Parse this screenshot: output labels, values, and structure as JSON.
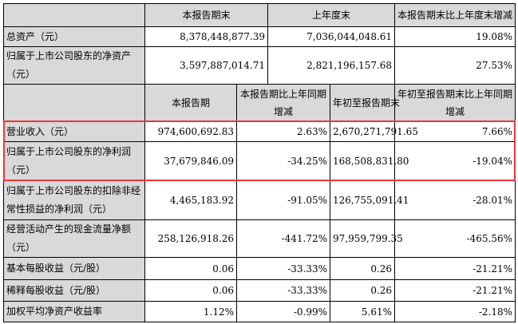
{
  "top_header": [
    "",
    "本报告期末",
    "上年度末",
    "本报告期末比上年度末增减"
  ],
  "top_rows": [
    {
      "label": "总资产（元）",
      "values": [
        "8,378,448,877.39",
        "7,036,044,048.61",
        "19.08%"
      ]
    },
    {
      "label": "归属于上市公司股东的净资产（元）",
      "values": [
        "3,597,887,014.71",
        "2,821,196,157.68",
        "27.53%"
      ]
    }
  ],
  "bottom_header": [
    "",
    "本报告期",
    "本报告期比上年同期增减",
    "年初至报告期末",
    "年初至报告期末比上年同期增减"
  ],
  "bottom_rows": [
    {
      "label": "营业收入（元）",
      "values": [
        "974,600,692.83",
        "2.63%",
        "2,670,271,791.65",
        "7.66%"
      ]
    },
    {
      "label": "归属于上市公司股东的净利润（元）",
      "values": [
        "37,679,846.09",
        "-34.25%",
        "168,508,831.80",
        "-19.04%"
      ]
    },
    {
      "label": "归属于上市公司股东的扣除非经常性损益的净利润（元）",
      "values": [
        "4,465,183.92",
        "-91.05%",
        "126,755,091.41",
        "-28.01%"
      ]
    },
    {
      "label": "经营活动产生的现金流量净额（元）",
      "values": [
        "258,126,918.26",
        "-441.72%",
        "97,959,799.35",
        "-465.56%"
      ]
    },
    {
      "label": "基本每股收益（元/股）",
      "values": [
        "0.06",
        "-33.33%",
        "0.26",
        "-21.21%"
      ]
    },
    {
      "label": "稀释每股收益（元/股）",
      "values": [
        "0.06",
        "-33.33%",
        "0.26",
        "-21.21%"
      ]
    },
    {
      "label": "加权平均净资产收益率",
      "values": [
        "1.12%",
        "-0.99%",
        "5.61%",
        "-2.18%"
      ]
    }
  ],
  "highlight_color": "#f0353a"
}
